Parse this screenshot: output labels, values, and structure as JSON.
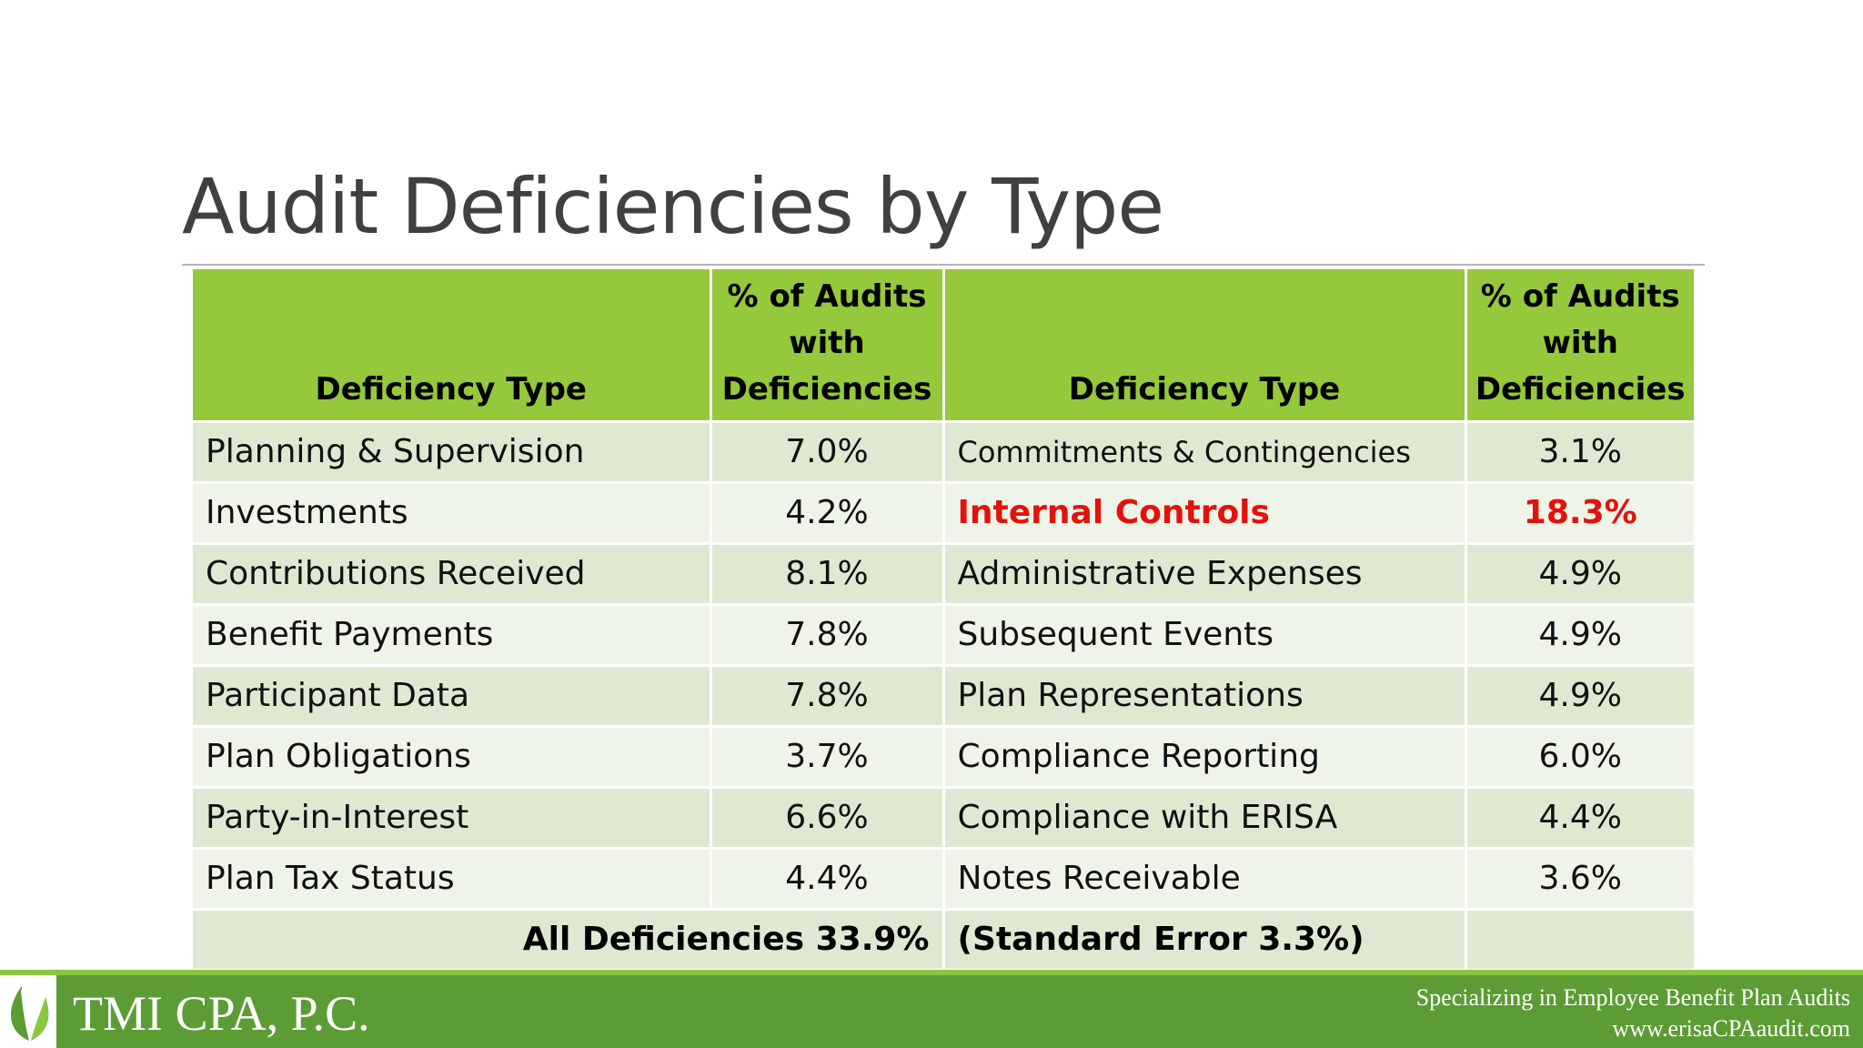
{
  "slide": {
    "title": "Audit Deficiencies by Type"
  },
  "table": {
    "headers": {
      "type_left": "Deficiency Type",
      "pct_left": "% of Audits with Deficiencies",
      "type_right": "Deficiency Type",
      "pct_right": "% of Audits with Deficiencies"
    },
    "rows": [
      {
        "left_type": "Planning & Supervision",
        "left_pct": "7.0%",
        "right_type": "Commitments & Contingencies",
        "right_pct": "3.1%"
      },
      {
        "left_type": "Investments",
        "left_pct": "4.2%",
        "right_type": "Internal Controls",
        "right_pct": "18.3%"
      },
      {
        "left_type": "Contributions Received",
        "left_pct": "8.1%",
        "right_type": "Administrative Expenses",
        "right_pct": "4.9%"
      },
      {
        "left_type": "Benefit Payments",
        "left_pct": "7.8%",
        "right_type": "Subsequent Events",
        "right_pct": "4.9%"
      },
      {
        "left_type": "Participant Data",
        "left_pct": "7.8%",
        "right_type": "Plan Representations",
        "right_pct": "4.9%"
      },
      {
        "left_type": "Plan Obligations",
        "left_pct": "3.7%",
        "right_type": "Compliance Reporting",
        "right_pct": "6.0%"
      },
      {
        "left_type": "Party-in-Interest",
        "left_pct": "6.6%",
        "right_type": "Compliance with ERISA",
        "right_pct": "4.4%"
      },
      {
        "left_type": "Plan Tax Status",
        "left_pct": "4.4%",
        "right_type": "Notes Receivable",
        "right_pct": "3.6%"
      }
    ],
    "total": {
      "label": "All Deficiencies 33.9%",
      "standard_error": "(Standard Error 3.3%)"
    },
    "highlight_color": "#e3120b"
  },
  "footer": {
    "company": "TMI CPA, P.C.",
    "tagline": "Specializing in Employee Benefit Plan Audits",
    "website": "www.erisaCPAaudit.com",
    "logo_icon": "leaf-icon"
  },
  "colors": {
    "header_green": "#96c83c",
    "row_odd": "#dfe9d2",
    "row_even": "#eff4e9",
    "footer_green": "#5c9c34"
  }
}
